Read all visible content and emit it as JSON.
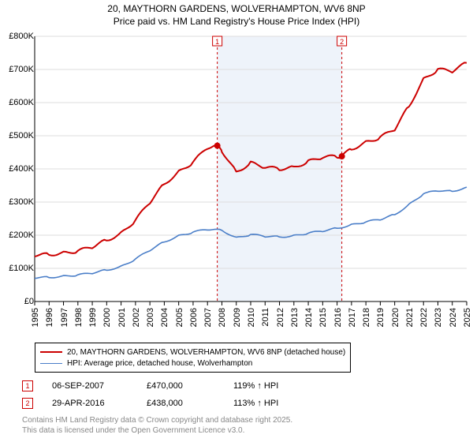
{
  "title_line1": "20, MAYTHORN GARDENS, WOLVERHAMPTON, WV6 8NP",
  "title_line2": "Price paid vs. HM Land Registry's House Price Index (HPI)",
  "chart": {
    "type": "line",
    "x_years": [
      1995,
      1996,
      1997,
      1998,
      1999,
      2000,
      2001,
      2002,
      2003,
      2004,
      2005,
      2006,
      2007,
      2008,
      2009,
      2010,
      2011,
      2012,
      2013,
      2014,
      2015,
      2016,
      2017,
      2018,
      2019,
      2020,
      2021,
      2022,
      2023,
      2024,
      2025
    ],
    "ylim": [
      0,
      800000
    ],
    "ytick_step": 100000,
    "ytick_labels": [
      "£0",
      "£100K",
      "£200K",
      "£300K",
      "£400K",
      "£500K",
      "£600K",
      "£700K",
      "£800K"
    ],
    "background_color": "#ffffff",
    "grid_color": "#dddddd",
    "axis_color": "#000000",
    "label_fontsize": 11,
    "shade_start_year": 2007.68,
    "shade_end_year": 2016.33,
    "shade_color": "#eef3fa",
    "vline_color": "#cc0000",
    "vline_dash": "3,3",
    "marker_box_border": "#cc0000",
    "marker_box_text": "#cc0000",
    "sale_point_color": "#cc0000",
    "sale_point_radius": 4,
    "series": [
      {
        "name": "20, MAYTHORN GARDENS, WOLVERHAMPTON, WV6 8NP (detached house)",
        "color": "#cc0000",
        "width": 2,
        "values_by_year": {
          "1995": 140000,
          "1996": 142000,
          "1997": 146000,
          "1998": 152000,
          "1999": 165000,
          "2000": 185000,
          "2001": 205000,
          "2002": 245000,
          "2003": 300000,
          "2004": 355000,
          "2005": 390000,
          "2006": 420000,
          "2007": 465000,
          "2007.7": 470000,
          "2008": 455000,
          "2009": 390000,
          "2010": 418000,
          "2011": 405000,
          "2012": 400000,
          "2013": 405000,
          "2014": 422000,
          "2015": 435000,
          "2016": 438000,
          "2016.3": 438000,
          "2017": 460000,
          "2018": 480000,
          "2019": 495000,
          "2020": 520000,
          "2021": 590000,
          "2022": 670000,
          "2023": 700000,
          "2024": 695000,
          "2025": 720000
        }
      },
      {
        "name": "HPI: Average price, detached house, Wolverhampton",
        "color": "#4a7ec8",
        "width": 1.6,
        "values_by_year": {
          "1995": 72000,
          "1996": 73000,
          "1997": 76000,
          "1998": 80000,
          "1999": 86000,
          "2000": 95000,
          "2001": 105000,
          "2002": 128000,
          "2003": 155000,
          "2004": 180000,
          "2005": 198000,
          "2006": 209000,
          "2007": 218000,
          "2008": 215000,
          "2009": 192000,
          "2010": 202000,
          "2011": 197000,
          "2012": 195000,
          "2013": 198000,
          "2014": 206000,
          "2015": 213000,
          "2016": 221000,
          "2017": 231000,
          "2018": 240000,
          "2019": 248000,
          "2020": 262000,
          "2021": 292000,
          "2022": 325000,
          "2023": 335000,
          "2024": 332000,
          "2025": 345000
        }
      }
    ],
    "sale_points": [
      {
        "year": 2007.68,
        "value": 470000
      },
      {
        "year": 2016.33,
        "value": 438000
      }
    ]
  },
  "legend": {
    "items": [
      {
        "color": "#cc0000",
        "width": 2,
        "label": "20, MAYTHORN GARDENS, WOLVERHAMPTON, WV6 8NP (detached house)"
      },
      {
        "color": "#4a7ec8",
        "width": 1.6,
        "label": "HPI: Average price, detached house, Wolverhampton"
      }
    ]
  },
  "sales": [
    {
      "n": "1",
      "date": "06-SEP-2007",
      "price": "£470,000",
      "vs": "119% ↑ HPI"
    },
    {
      "n": "2",
      "date": "29-APR-2016",
      "price": "£438,000",
      "vs": "113% ↑ HPI"
    }
  ],
  "footnote_line1": "Contains HM Land Registry data © Crown copyright and database right 2025.",
  "footnote_line2": "This data is licensed under the Open Government Licence v3.0."
}
